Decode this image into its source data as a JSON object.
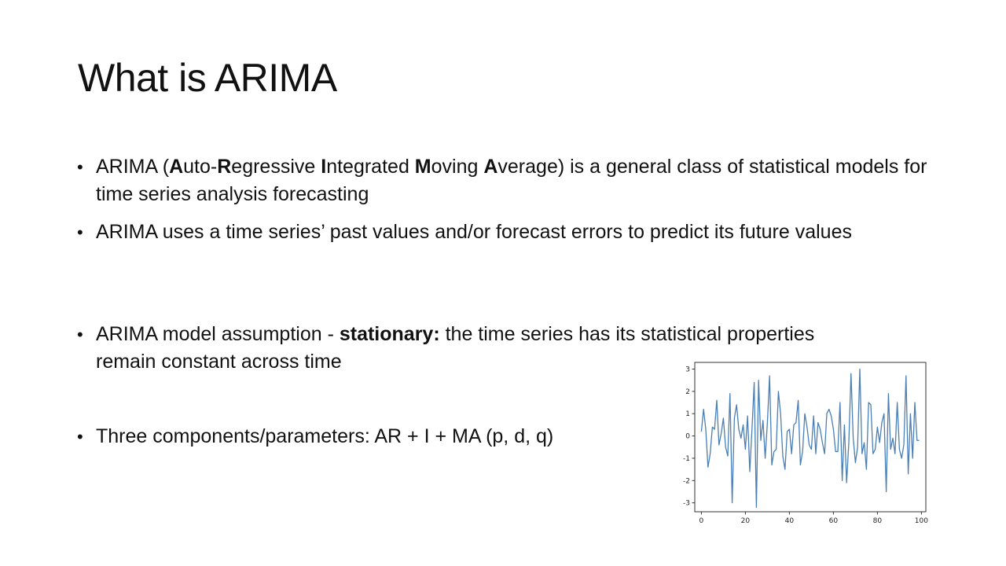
{
  "slide": {
    "title": "What is ARIMA",
    "bullets": [
      {
        "parts": [
          {
            "text": "ARIMA (",
            "bold": false
          },
          {
            "text": "A",
            "bold": true
          },
          {
            "text": "uto-",
            "bold": false
          },
          {
            "text": "R",
            "bold": true
          },
          {
            "text": "egressive ",
            "bold": false
          },
          {
            "text": "I",
            "bold": true
          },
          {
            "text": "ntegrated ",
            "bold": false
          },
          {
            "text": "M",
            "bold": true
          },
          {
            "text": "oving ",
            "bold": false
          },
          {
            "text": "A",
            "bold": true
          },
          {
            "text": "verage) is a general class of statistical models for time series analysis forecasting",
            "bold": false
          }
        ]
      },
      {
        "parts": [
          {
            "text": "ARIMA uses a time series’ past values and/or forecast errors to predict its future values",
            "bold": false
          }
        ]
      },
      {
        "parts": [
          {
            "text": "ARIMA model assumption - ",
            "bold": false
          },
          {
            "text": "stationary:",
            "bold": true
          },
          {
            "text": " the time series has its statistical properties remain constant across time",
            "bold": false
          }
        ]
      },
      {
        "parts": [
          {
            "text": "Three components/parameters: AR + I + MA (p, d, q)",
            "bold": false
          }
        ]
      }
    ],
    "bullet_glyph": "•"
  },
  "chart_data": {
    "type": "line",
    "title": "",
    "xlabel": "",
    "ylabel": "",
    "xlim": [
      -3,
      102
    ],
    "ylim": [
      -3.4,
      3.3
    ],
    "xticks": [
      0,
      20,
      40,
      60,
      80,
      100
    ],
    "yticks": [
      3,
      2,
      1,
      0,
      -1,
      -2,
      -3
    ],
    "grid": false,
    "line_color": "#4a7fb5",
    "series": [
      {
        "x": [
          0,
          1,
          2,
          3,
          4,
          5,
          6,
          7,
          8,
          9,
          10,
          11,
          12,
          13,
          14,
          15,
          16,
          17,
          18,
          19,
          20,
          21,
          22,
          23,
          24,
          25,
          26,
          27,
          28,
          29,
          30,
          31,
          32,
          33,
          34,
          35,
          36,
          37,
          38,
          39,
          40,
          41,
          42,
          43,
          44,
          45,
          46,
          47,
          48,
          49,
          50,
          51,
          52,
          53,
          54,
          55,
          56,
          57,
          58,
          59,
          60,
          61,
          62,
          63,
          64,
          65,
          66,
          67,
          68,
          69,
          70,
          71,
          72,
          73,
          74,
          75,
          76,
          77,
          78,
          79,
          80,
          81,
          82,
          83,
          84,
          85,
          86,
          87,
          88,
          89,
          90,
          91,
          92,
          93,
          94,
          95,
          96,
          97,
          98,
          99
        ],
        "values": [
          0.2,
          1.2,
          0.3,
          -1.4,
          -0.8,
          0.4,
          0.3,
          1.6,
          -0.4,
          0.1,
          0.8,
          -0.5,
          -0.9,
          1.9,
          -3.0,
          0.8,
          1.4,
          0.3,
          -0.1,
          0.5,
          -0.6,
          0.9,
          -1.6,
          0.3,
          2.4,
          -3.2,
          2.5,
          -0.2,
          0.7,
          -1.0,
          0.6,
          2.7,
          -1.3,
          -0.7,
          -0.6,
          2.0,
          1.0,
          -0.9,
          -1.5,
          0.2,
          0.3,
          -0.8,
          0.5,
          0.6,
          1.6,
          -1.3,
          -0.7,
          1.0,
          0.4,
          -0.4,
          -0.6,
          0.9,
          -0.8,
          0.6,
          0.3,
          -0.3,
          -0.8,
          1.0,
          1.2,
          0.9,
          0.3,
          -0.7,
          -0.7,
          1.5,
          -2.0,
          0.5,
          -2.1,
          -0.3,
          2.8,
          -0.1,
          -1.2,
          -0.5,
          3.0,
          -0.8,
          -0.3,
          -1.5,
          1.5,
          1.4,
          -0.8,
          -0.6,
          0.4,
          -0.3,
          0.6,
          1.0,
          -2.5,
          1.9,
          -0.6,
          -0.1,
          -0.8,
          1.5,
          -0.6,
          -1.0,
          -0.4,
          2.7,
          -1.7,
          1.0,
          -1.0,
          1.5,
          -0.2,
          -0.2
        ]
      }
    ]
  }
}
